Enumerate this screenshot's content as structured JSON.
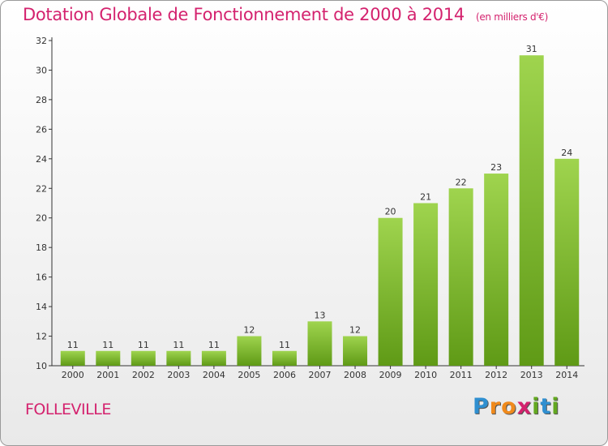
{
  "title": "Dotation Globale de Fonctionnement de 2000 à 2014",
  "unit_note": "(en milliers d'€)",
  "city": "FOLLEVILLE",
  "logo": {
    "text": "Proxiti",
    "letters": [
      {
        "ch": "P",
        "color": "#2f8fd0"
      },
      {
        "ch": "r",
        "color": "#f08a1c"
      },
      {
        "ch": "o",
        "color": "#f08a1c"
      },
      {
        "ch": "x",
        "color": "#d4226e"
      },
      {
        "ch": "i",
        "color": "#63a820"
      },
      {
        "ch": "t",
        "color": "#2f8fd0"
      },
      {
        "ch": "i",
        "color": "#63a820"
      }
    ]
  },
  "colors": {
    "accent": "#d4226e",
    "bar_light": "#9fd44e",
    "bar_dark": "#5f9a16"
  },
  "chart_data": {
    "type": "bar",
    "title": "Dotation Globale de Fonctionnement de 2000 à 2014",
    "subtitle": "(en milliers d'€)",
    "categories": [
      "2000",
      "2001",
      "2002",
      "2003",
      "2004",
      "2005",
      "2006",
      "2007",
      "2008",
      "2009",
      "2010",
      "2011",
      "2012",
      "2013",
      "2014"
    ],
    "values": [
      11,
      11,
      11,
      11,
      11,
      12,
      11,
      13,
      12,
      20,
      21,
      22,
      23,
      31,
      24
    ],
    "ylim": [
      10,
      32
    ],
    "yticks": [
      10,
      12,
      14,
      16,
      18,
      20,
      22,
      24,
      26,
      28,
      30,
      32
    ],
    "xlabel": "",
    "ylabel": "",
    "grid": false,
    "legend": "none"
  }
}
